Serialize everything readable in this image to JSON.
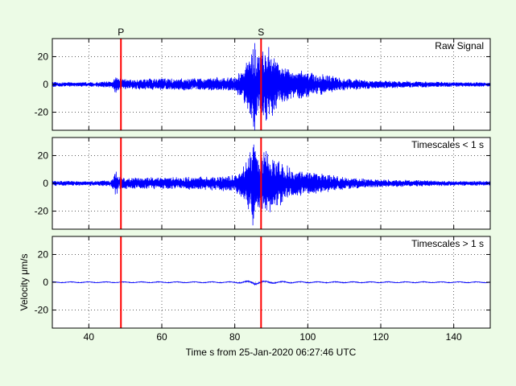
{
  "figure": {
    "background": "#ecfbe6",
    "axes_background": "#ffffff",
    "signal_color": "#0000ff",
    "marker_color": "#ff0000",
    "xlabel": "Time s from 25-Jan-2020 06:27:46 UTC",
    "ylabel": "Velocity μm/s"
  },
  "chart_data": [
    {
      "type": "line",
      "title": "Raw Signal",
      "xlim": [
        30,
        150
      ],
      "ylim": [
        -33,
        33
      ],
      "xticks": [
        40,
        60,
        80,
        100,
        120,
        140
      ],
      "yticks": [
        -20,
        0,
        20
      ],
      "grid": true,
      "phase_markers": [
        {
          "label": "P",
          "x": 48.8
        },
        {
          "label": "S",
          "x": 87.2
        }
      ],
      "series": [
        {
          "x": [
            30,
            40,
            46,
            47.5,
            48,
            49,
            50,
            55,
            60,
            65,
            70,
            75,
            80,
            82,
            84,
            85,
            85.5,
            86,
            87,
            88,
            90,
            92,
            95,
            100,
            105,
            110,
            115,
            120,
            130,
            140,
            150
          ],
          "y_amplitude": [
            1.5,
            1.5,
            2,
            6,
            4,
            4,
            3.5,
            3.5,
            4,
            4,
            4,
            4.5,
            5,
            10,
            18,
            28,
            33,
            22,
            18,
            26,
            22,
            14,
            10,
            8,
            6,
            4,
            3,
            2.5,
            2,
            1.5,
            1.5
          ]
        }
      ]
    },
    {
      "type": "line",
      "title": "Timescales < 1 s",
      "xlim": [
        30,
        150
      ],
      "ylim": [
        -33,
        33
      ],
      "xticks": [
        40,
        60,
        80,
        100,
        120,
        140
      ],
      "yticks": [
        -20,
        0,
        20
      ],
      "grid": true,
      "phase_markers": [
        {
          "label": "",
          "x": 48.8
        },
        {
          "label": "",
          "x": 87.2
        }
      ],
      "series": [
        {
          "x": [
            30,
            40,
            46,
            47.5,
            48,
            49,
            50,
            55,
            60,
            65,
            70,
            75,
            80,
            82,
            84,
            85,
            85.5,
            86,
            87,
            88,
            90,
            92,
            95,
            100,
            105,
            110,
            115,
            120,
            130,
            140,
            150
          ],
          "y_amplitude": [
            1.5,
            1.5,
            2,
            8,
            5,
            4,
            3.5,
            3.5,
            4,
            4,
            4,
            4.5,
            5,
            10,
            18,
            28,
            30,
            22,
            18,
            20,
            20,
            14,
            10,
            8,
            6,
            4,
            3,
            2.5,
            2,
            1.5,
            1.5
          ]
        }
      ]
    },
    {
      "type": "line",
      "title": "Timescales > 1 s",
      "xlim": [
        30,
        150
      ],
      "ylim": [
        -33,
        33
      ],
      "xticks": [
        40,
        60,
        80,
        100,
        120,
        140
      ],
      "yticks": [
        -20,
        0,
        20
      ],
      "grid": true,
      "phase_markers": [
        {
          "label": "",
          "x": 48.8
        },
        {
          "label": "",
          "x": 87.2
        }
      ],
      "series": [
        {
          "x": [
            30,
            50,
            80,
            84,
            85.5,
            87,
            90,
            100,
            150
          ],
          "y_amplitude": [
            0.4,
            0.4,
            0.5,
            1.2,
            2,
            1.2,
            0.8,
            0.5,
            0.4
          ]
        }
      ]
    }
  ]
}
